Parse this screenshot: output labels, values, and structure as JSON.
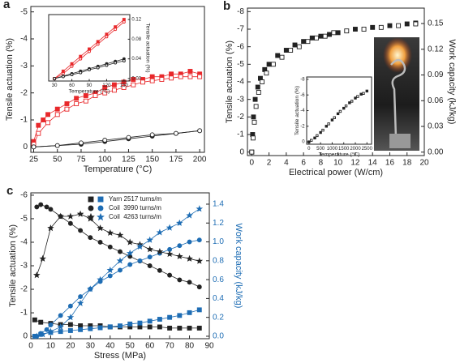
{
  "chart_data": [
    {
      "type": "scatter",
      "panel": "a",
      "xlabel": "Temperature (°C)",
      "ylabel": "Tensile actuation (%)",
      "xlim": [
        22,
        205
      ],
      "xticks": [
        25,
        50,
        75,
        100,
        125,
        150,
        175,
        200
      ],
      "ylim": [
        0.2,
        -5.2
      ],
      "yticks": [
        0,
        -1,
        -2,
        -3,
        -4,
        -5
      ],
      "series": [
        {
          "color": "#e8282b",
          "marker": "square",
          "filled": true,
          "line": true,
          "x": [
            25,
            30,
            35,
            40,
            50,
            60,
            70,
            80,
            90,
            100,
            110,
            120,
            130,
            140,
            150,
            160,
            170,
            180,
            190,
            200
          ],
          "values": [
            -0.2,
            -0.8,
            -1.0,
            -1.2,
            -1.4,
            -1.6,
            -1.8,
            -1.9,
            -2.0,
            -2.2,
            -2.3,
            -2.4,
            -2.5,
            -2.5,
            -2.6,
            -2.6,
            -2.7,
            -2.7,
            -2.8,
            -2.7
          ]
        },
        {
          "color": "#e8282b",
          "marker": "square",
          "filled": false,
          "line": true,
          "x": [
            25,
            30,
            40,
            50,
            60,
            70,
            80,
            90,
            100,
            110,
            120,
            130,
            140,
            150,
            160,
            170,
            180,
            190,
            200
          ],
          "values": [
            -0.1,
            -0.5,
            -0.9,
            -1.2,
            -1.4,
            -1.6,
            -1.7,
            -1.9,
            -2.0,
            -2.1,
            -2.2,
            -2.3,
            -2.4,
            -2.45,
            -2.5,
            -2.55,
            -2.6,
            -2.6,
            -2.6
          ]
        },
        {
          "color": "#222222",
          "marker": "circle",
          "filled": true,
          "line": true,
          "x": [
            25,
            50,
            75,
            100,
            125,
            150,
            175,
            200
          ],
          "values": [
            0,
            -0.05,
            -0.1,
            -0.2,
            -0.3,
            -0.4,
            -0.5,
            -0.6
          ]
        },
        {
          "color": "#222222",
          "marker": "circle",
          "filled": false,
          "line": true,
          "x": [
            25,
            50,
            75,
            100,
            125,
            150,
            175,
            200
          ],
          "values": [
            0,
            -0.05,
            -0.15,
            -0.25,
            -0.35,
            -0.45,
            -0.5,
            -0.6
          ]
        }
      ]
    },
    {
      "type": "scatter",
      "xlabel": "Temperature (°C)",
      "y2label": "Tensile actuation (%)",
      "xlim": [
        20,
        160
      ],
      "xticks": [
        30,
        60,
        90,
        120,
        150
      ],
      "y2lim": [
        -0.005,
        0.13
      ],
      "y2ticks": [
        {
          "value": 0,
          "label": "0.00"
        },
        {
          "value": 0.04,
          "label": "0.04"
        },
        {
          "value": 0.08,
          "label": "0.08"
        },
        {
          "value": 0.12,
          "label": "0.12"
        }
      ],
      "series": [
        {
          "color": "#e8282b",
          "marker": "square",
          "filled": true,
          "line": true,
          "axis": "y2",
          "x": [
            30,
            45,
            60,
            75,
            90,
            105,
            120,
            135,
            150
          ],
          "values": [
            0,
            0.015,
            0.03,
            0.045,
            0.06,
            0.075,
            0.09,
            0.105,
            0.12
          ]
        },
        {
          "color": "#e8282b",
          "marker": "circle",
          "filled": false,
          "line": true,
          "axis": "y2",
          "x": [
            30,
            45,
            60,
            75,
            90,
            105,
            120,
            135,
            150
          ],
          "values": [
            0,
            0.01,
            0.025,
            0.04,
            0.055,
            0.07,
            0.085,
            0.1,
            0.115
          ]
        },
        {
          "color": "#222222",
          "marker": "circle",
          "filled": true,
          "line": true,
          "axis": "y2",
          "x": [
            30,
            45,
            60,
            75,
            90,
            105,
            120,
            135,
            150
          ],
          "values": [
            0,
            0.005,
            0.01,
            0.015,
            0.02,
            0.025,
            0.03,
            0.035,
            0.04
          ]
        },
        {
          "color": "#222222",
          "marker": "circle",
          "filled": false,
          "line": true,
          "axis": "y2",
          "x": [
            30,
            45,
            60,
            75,
            90,
            105,
            120,
            135,
            150
          ],
          "values": [
            0,
            0.004,
            0.008,
            0.012,
            0.018,
            0.022,
            0.027,
            0.032,
            0.036
          ]
        }
      ]
    },
    {
      "type": "scatter",
      "panel": "b",
      "xlabel": "Electrical power (W/cm)",
      "ylabel": "Tensile actuation (%)",
      "y2label": "Work capacity (kJ/kg)",
      "xlim": [
        -0.5,
        20
      ],
      "xticks": [
        0,
        2,
        4,
        6,
        8,
        10,
        12,
        14,
        16,
        18,
        20
      ],
      "ylim": [
        0.2,
        -8.2
      ],
      "yticks": [
        0,
        -1,
        -2,
        -3,
        -4,
        -5,
        -6,
        -7,
        -8
      ],
      "y2lim": [
        -0.004,
        0.168
      ],
      "y2ticks": [
        {
          "value": 0,
          "label": "0.00"
        },
        {
          "value": 0.03,
          "label": "0.03"
        },
        {
          "value": 0.06,
          "label": "0.06"
        },
        {
          "value": 0.09,
          "label": "0.09"
        },
        {
          "value": 0.12,
          "label": "0.12"
        },
        0.15
      ],
      "series": [
        {
          "color": "#222222",
          "marker": "square",
          "filled": true,
          "line": false,
          "x": [
            0,
            0.1,
            0.2,
            0.4,
            0.7,
            1,
            1.5,
            2,
            3,
            4,
            5,
            6,
            7,
            8,
            9,
            10,
            12,
            14,
            16,
            18,
            19
          ],
          "values": [
            0,
            -1,
            -2,
            -3,
            -3.7,
            -4.2,
            -4.7,
            -5,
            -5.5,
            -5.8,
            -6.1,
            -6.3,
            -6.5,
            -6.6,
            -6.7,
            -6.8,
            -7.0,
            -7.1,
            -7.2,
            -7.3,
            -7.35
          ]
        },
        {
          "color": "#222222",
          "marker": "square",
          "filled": false,
          "line": false,
          "x": [
            0,
            0.15,
            0.3,
            0.5,
            0.8,
            1.2,
            1.7,
            2.5,
            3.5,
            4.5,
            5.5,
            6.5,
            7.5,
            8.5,
            9.5,
            11,
            13,
            15,
            17,
            19
          ],
          "values": [
            0,
            -0.8,
            -1.7,
            -2.6,
            -3.4,
            -4.0,
            -4.5,
            -5.0,
            -5.4,
            -5.8,
            -6.0,
            -6.3,
            -6.5,
            -6.6,
            -6.8,
            -6.9,
            -7.0,
            -7.1,
            -7.2,
            -7.3
          ]
        }
      ]
    },
    {
      "type": "scatter",
      "xlabel": "Temperature (°C)",
      "ylabel": "Tensile actuation (%)",
      "xlim": [
        -100,
        2700
      ],
      "xticks": [
        0,
        500,
        1000,
        1500,
        2000,
        2500
      ],
      "ylim": [
        0.3,
        -8.3
      ],
      "yticks": [
        0,
        -2,
        -4,
        -6,
        -8
      ],
      "series": [
        {
          "color": "#222222",
          "marker": "square",
          "filled": true,
          "line": false,
          "x": [
            0,
            250,
            500,
            750,
            1000,
            1250,
            1500,
            1750,
            2000,
            2250,
            2500
          ],
          "values": [
            0,
            -0.5,
            -1.2,
            -2,
            -2.8,
            -3.6,
            -4.3,
            -5,
            -5.6,
            -6.1,
            -6.5
          ]
        },
        {
          "color": "#222222",
          "marker": "square",
          "filled": false,
          "line": false,
          "x": [
            100,
            350,
            600,
            850,
            1100,
            1350,
            1600,
            1850,
            2100,
            2350
          ],
          "values": [
            -0.2,
            -0.8,
            -1.5,
            -2.3,
            -3.1,
            -3.9,
            -4.6,
            -5.2,
            -5.8,
            -6.2
          ]
        }
      ]
    },
    {
      "type": "scatter",
      "panel": "c",
      "xlabel": "Stress (MPa)",
      "ylabel": "Tensile actuation (%)",
      "y2label": "Work capacity (kJ/kg)",
      "y2color": "#1e6db4",
      "xlim": [
        0,
        90
      ],
      "xticks": [
        0,
        10,
        20,
        30,
        40,
        50,
        60,
        70,
        80,
        90
      ],
      "ylim": [
        0.1,
        -6.1
      ],
      "yticks": [
        0,
        -1,
        -2,
        -3,
        -4,
        -5,
        -6
      ],
      "y2lim": [
        -0.026,
        1.52
      ],
      "y2ticks": [
        {
          "value": 0,
          "label": "0.0"
        },
        0.2,
        0.4,
        0.6,
        0.8,
        {
          "value": 1,
          "label": "1.0"
        },
        1.2,
        1.4
      ],
      "series": [
        {
          "name": "Yarn 2517 turns/m",
          "marker": "square",
          "color": "#222222",
          "color2": "#1e6db4",
          "filled": true,
          "line": true,
          "x": [
            2,
            5,
            10,
            15,
            20,
            25,
            30,
            35,
            40,
            45,
            50,
            55,
            60,
            65,
            70,
            75,
            80,
            85
          ],
          "values": [
            -0.7,
            -0.6,
            -0.55,
            -0.5,
            -0.5,
            -0.45,
            -0.45,
            -0.45,
            -0.4,
            -0.4,
            -0.4,
            -0.4,
            -0.4,
            -0.4,
            -0.35,
            -0.35,
            -0.35,
            -0.35
          ],
          "values2": [
            0,
            0.02,
            0.04,
            0.05,
            0.06,
            0.07,
            0.08,
            0.09,
            0.1,
            0.11,
            0.13,
            0.14,
            0.16,
            0.18,
            0.2,
            0.22,
            0.25,
            0.28
          ]
        },
        {
          "name": "Coil  3990 turns/m",
          "marker": "circle",
          "color": "#222222",
          "color2": "#1e6db4",
          "filled": true,
          "line": true,
          "x": [
            3,
            5,
            8,
            10,
            15,
            20,
            25,
            30,
            35,
            40,
            45,
            50,
            55,
            60,
            65,
            70,
            75,
            80,
            85
          ],
          "values": [
            -5.5,
            -5.6,
            -5.5,
            -5.4,
            -5.1,
            -4.8,
            -4.5,
            -4.2,
            -4.0,
            -3.8,
            -3.6,
            -3.4,
            -3.2,
            -3.0,
            -2.8,
            -2.6,
            -2.4,
            -2.3,
            -2.1
          ],
          "values2": [
            0,
            0.03,
            0.07,
            0.12,
            0.22,
            0.32,
            0.42,
            0.5,
            0.58,
            0.64,
            0.7,
            0.76,
            0.8,
            0.84,
            0.88,
            0.92,
            0.96,
            1.0,
            1.02
          ]
        },
        {
          "name": "Coil  4263 turns/m",
          "marker": "star",
          "color": "#222222",
          "color2": "#1e6db4",
          "filled": true,
          "line": true,
          "x": [
            3,
            6,
            10,
            15,
            20,
            25,
            30,
            35,
            40,
            45,
            50,
            55,
            60,
            65,
            70,
            75,
            80,
            85
          ],
          "values": [
            -2.6,
            -3.3,
            -4.6,
            -5.1,
            -5.1,
            -5.2,
            -5.0,
            -4.6,
            -4.4,
            -4.3,
            -4.0,
            -3.9,
            -3.7,
            -3.6,
            -3.5,
            -3.4,
            -3.3,
            -3.2
          ],
          "values2": [
            0,
            0.02,
            0.05,
            0.1,
            0.2,
            0.35,
            0.5,
            0.6,
            0.7,
            0.8,
            0.88,
            0.95,
            1.02,
            1.1,
            1.15,
            1.2,
            1.28,
            1.35
          ]
        }
      ]
    }
  ]
}
